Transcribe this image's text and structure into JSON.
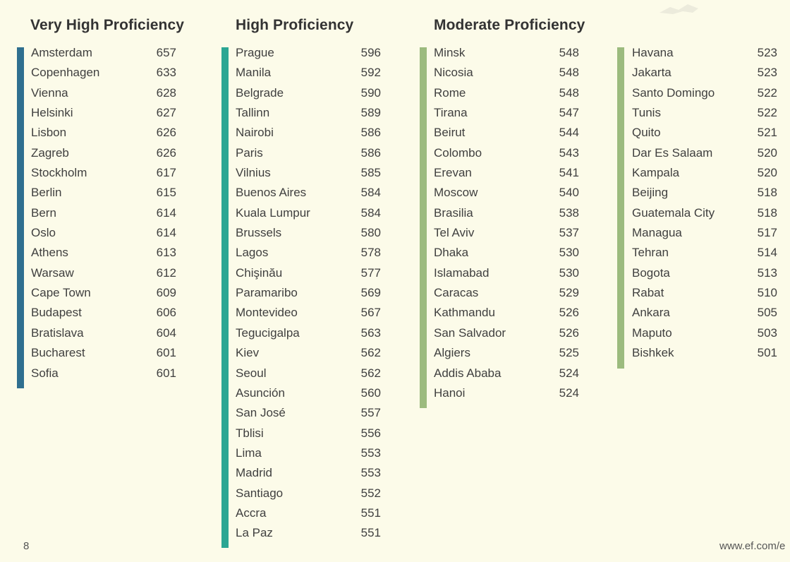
{
  "columns": [
    {
      "heading": "Very High Proficiency",
      "color": "#2f6f8f",
      "rows": [
        {
          "city": "Amsterdam",
          "score": "657"
        },
        {
          "city": "Copenhagen",
          "score": "633"
        },
        {
          "city": "Vienna",
          "score": "628"
        },
        {
          "city": "Helsinki",
          "score": "627"
        },
        {
          "city": "Lisbon",
          "score": "626"
        },
        {
          "city": "Zagreb",
          "score": "626"
        },
        {
          "city": "Stockholm",
          "score": "617"
        },
        {
          "city": "Berlin",
          "score": "615"
        },
        {
          "city": "Bern",
          "score": "614"
        },
        {
          "city": "Oslo",
          "score": "614"
        },
        {
          "city": "Athens",
          "score": "613"
        },
        {
          "city": "Warsaw",
          "score": "612"
        },
        {
          "city": "Cape Town",
          "score": "609"
        },
        {
          "city": "Budapest",
          "score": "606"
        },
        {
          "city": "Bratislava",
          "score": "604"
        },
        {
          "city": "Bucharest",
          "score": "601"
        },
        {
          "city": "Sofia",
          "score": "601"
        }
      ]
    },
    {
      "heading": "High Proficiency",
      "color": "#2ba693",
      "rows": [
        {
          "city": "Prague",
          "score": "596"
        },
        {
          "city": "Manila",
          "score": "592"
        },
        {
          "city": "Belgrade",
          "score": "590"
        },
        {
          "city": "Tallinn",
          "score": "589"
        },
        {
          "city": "Nairobi",
          "score": "586"
        },
        {
          "city": "Paris",
          "score": "586"
        },
        {
          "city": "Vilnius",
          "score": "585"
        },
        {
          "city": "Buenos Aires",
          "score": "584"
        },
        {
          "city": "Kuala Lumpur",
          "score": "584"
        },
        {
          "city": "Brussels",
          "score": "580"
        },
        {
          "city": "Lagos",
          "score": "578"
        },
        {
          "city": "Chişinău",
          "score": "577"
        },
        {
          "city": "Paramaribo",
          "score": "569"
        },
        {
          "city": "Montevideo",
          "score": "567"
        },
        {
          "city": "Tegucigalpa",
          "score": "563"
        },
        {
          "city": "Kiev",
          "score": "562"
        },
        {
          "city": "Seoul",
          "score": "562"
        },
        {
          "city": "Asunción",
          "score": "560"
        },
        {
          "city": "San José",
          "score": "557"
        },
        {
          "city": "Tblisi",
          "score": "556"
        },
        {
          "city": "Lima",
          "score": "553"
        },
        {
          "city": "Madrid",
          "score": "553"
        },
        {
          "city": "Santiago",
          "score": "552"
        },
        {
          "city": "Accra",
          "score": "551"
        },
        {
          "city": "La Paz",
          "score": "551"
        }
      ]
    },
    {
      "heading": "Moderate Proficiency",
      "color": "#9cbb7e",
      "rows": [
        {
          "city": "Minsk",
          "score": "548"
        },
        {
          "city": "Nicosia",
          "score": "548"
        },
        {
          "city": "Rome",
          "score": "548"
        },
        {
          "city": "Tirana",
          "score": "547"
        },
        {
          "city": "Beirut",
          "score": "544"
        },
        {
          "city": "Colombo",
          "score": "543"
        },
        {
          "city": "Erevan",
          "score": "541"
        },
        {
          "city": "Moscow",
          "score": "540"
        },
        {
          "city": "Brasilia",
          "score": "538"
        },
        {
          "city": "Tel Aviv",
          "score": "537"
        },
        {
          "city": "Dhaka",
          "score": "530"
        },
        {
          "city": "Islamabad",
          "score": "530"
        },
        {
          "city": "Caracas",
          "score": "529"
        },
        {
          "city": "Kathmandu",
          "score": "526"
        },
        {
          "city": "San Salvador",
          "score": "526"
        },
        {
          "city": "Algiers",
          "score": "525"
        },
        {
          "city": "Addis Ababa",
          "score": "524"
        },
        {
          "city": "Hanoi",
          "score": "524"
        }
      ]
    },
    {
      "heading": "",
      "color": "#9cbb7e",
      "rows": [
        {
          "city": "Havana",
          "score": "523"
        },
        {
          "city": "Jakarta",
          "score": "523"
        },
        {
          "city": "Santo Domingo",
          "score": "522"
        },
        {
          "city": "Tunis",
          "score": "522"
        },
        {
          "city": "Quito",
          "score": "521"
        },
        {
          "city": "Dar Es Salaam",
          "score": "520"
        },
        {
          "city": "Kampala",
          "score": "520"
        },
        {
          "city": "Beijing",
          "score": "518"
        },
        {
          "city": "Guatemala City",
          "score": "518"
        },
        {
          "city": "Managua",
          "score": "517"
        },
        {
          "city": "Tehran",
          "score": "514"
        },
        {
          "city": "Bogota",
          "score": "513"
        },
        {
          "city": "Rabat",
          "score": "510"
        },
        {
          "city": "Ankara",
          "score": "505"
        },
        {
          "city": "Maputo",
          "score": "503"
        },
        {
          "city": "Bishkek",
          "score": "501"
        }
      ]
    }
  ],
  "footer": {
    "page_number": "8",
    "url": "www.ef.com/e"
  }
}
